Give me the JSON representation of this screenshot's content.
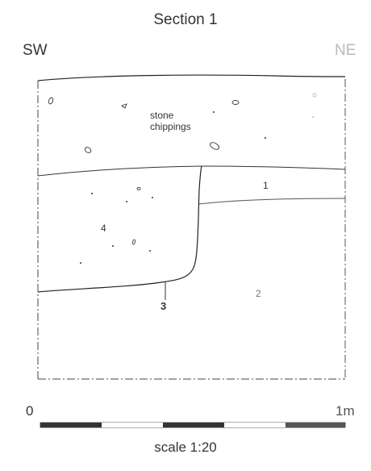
{
  "title": "Section 1",
  "orientation": {
    "left": "SW",
    "right": "NE"
  },
  "layers": {
    "stone_line1": "stone",
    "stone_line2": "chippings",
    "context_1": "1",
    "context_2": "2",
    "context_3": "3",
    "context_4": "4"
  },
  "scale": {
    "start_label": "0",
    "end_label": "1m",
    "text": "scale 1:20"
  },
  "colors": {
    "line": "#222222",
    "bar_dark": "#333333",
    "faded": "#b9b9b9"
  }
}
